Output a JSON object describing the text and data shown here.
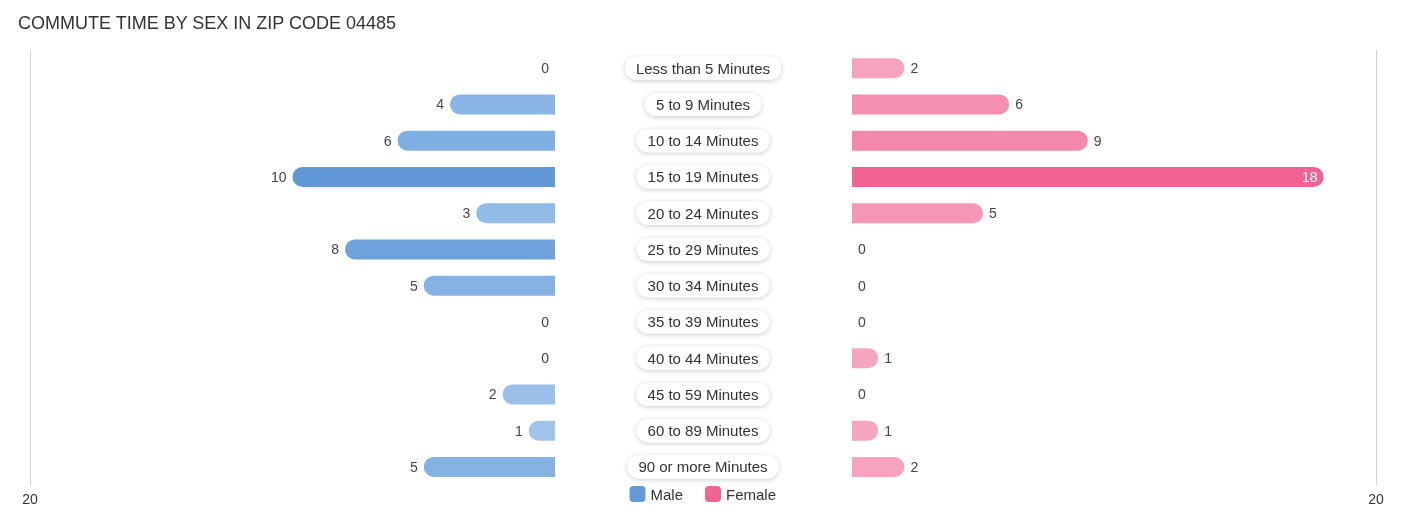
{
  "chart_data": [
    {
      "type": "bar",
      "orientation": "horizontal",
      "title": "COMMUTE TIME BY SEX IN ZIP CODE 04485",
      "categories": [
        "Less than 5 Minutes",
        "5 to 9 Minutes",
        "10 to 14 Minutes",
        "15 to 19 Minutes",
        "20 to 24 Minutes",
        "25 to 29 Minutes",
        "30 to 34 Minutes",
        "35 to 39 Minutes",
        "40 to 44 Minutes",
        "45 to 59 Minutes",
        "60 to 89 Minutes",
        "90 or more Minutes"
      ],
      "series": [
        {
          "name": "Male",
          "color": "#6399d8",
          "colors": [
            "#aac8ec",
            "#8bb5e4",
            "#7eaee2",
            "#6198d8",
            "#92bbe6",
            "#6ea2dc",
            "#85b1e3",
            "#aac8ec",
            "#aac8ec",
            "#9bc0e8",
            "#a2c4ea",
            "#85b1e3"
          ],
          "values": [
            0,
            4,
            6,
            10,
            3,
            8,
            5,
            0,
            0,
            2,
            1,
            5
          ]
        }
      ],
      "data_labels": true,
      "xlim": [
        20,
        0
      ],
      "xticks": [
        20
      ],
      "legend": "bottom"
    },
    {
      "type": "bar",
      "orientation": "horizontal",
      "categories": [
        null,
        null,
        null,
        null,
        null,
        null,
        null,
        null,
        null,
        null,
        null,
        null
      ],
      "series": [
        {
          "name": "Female",
          "color": "#f06591",
          "colors": [
            "#f6a3bf",
            "#f590b2",
            "#f388ab",
            "#f06292",
            "#f596b5",
            "#f8abc5",
            "#f8abc5",
            "#f8abc5",
            "#f7a6c1",
            "#f8abc5",
            "#f7a6c1",
            "#f6a3bf"
          ],
          "values": [
            2,
            6,
            9,
            18,
            5,
            0,
            0,
            0,
            1,
            0,
            1,
            2
          ]
        }
      ],
      "data_labels": true,
      "xlim": [
        0,
        20
      ],
      "xticks": [
        20
      ],
      "legend": "bottom"
    }
  ]
}
